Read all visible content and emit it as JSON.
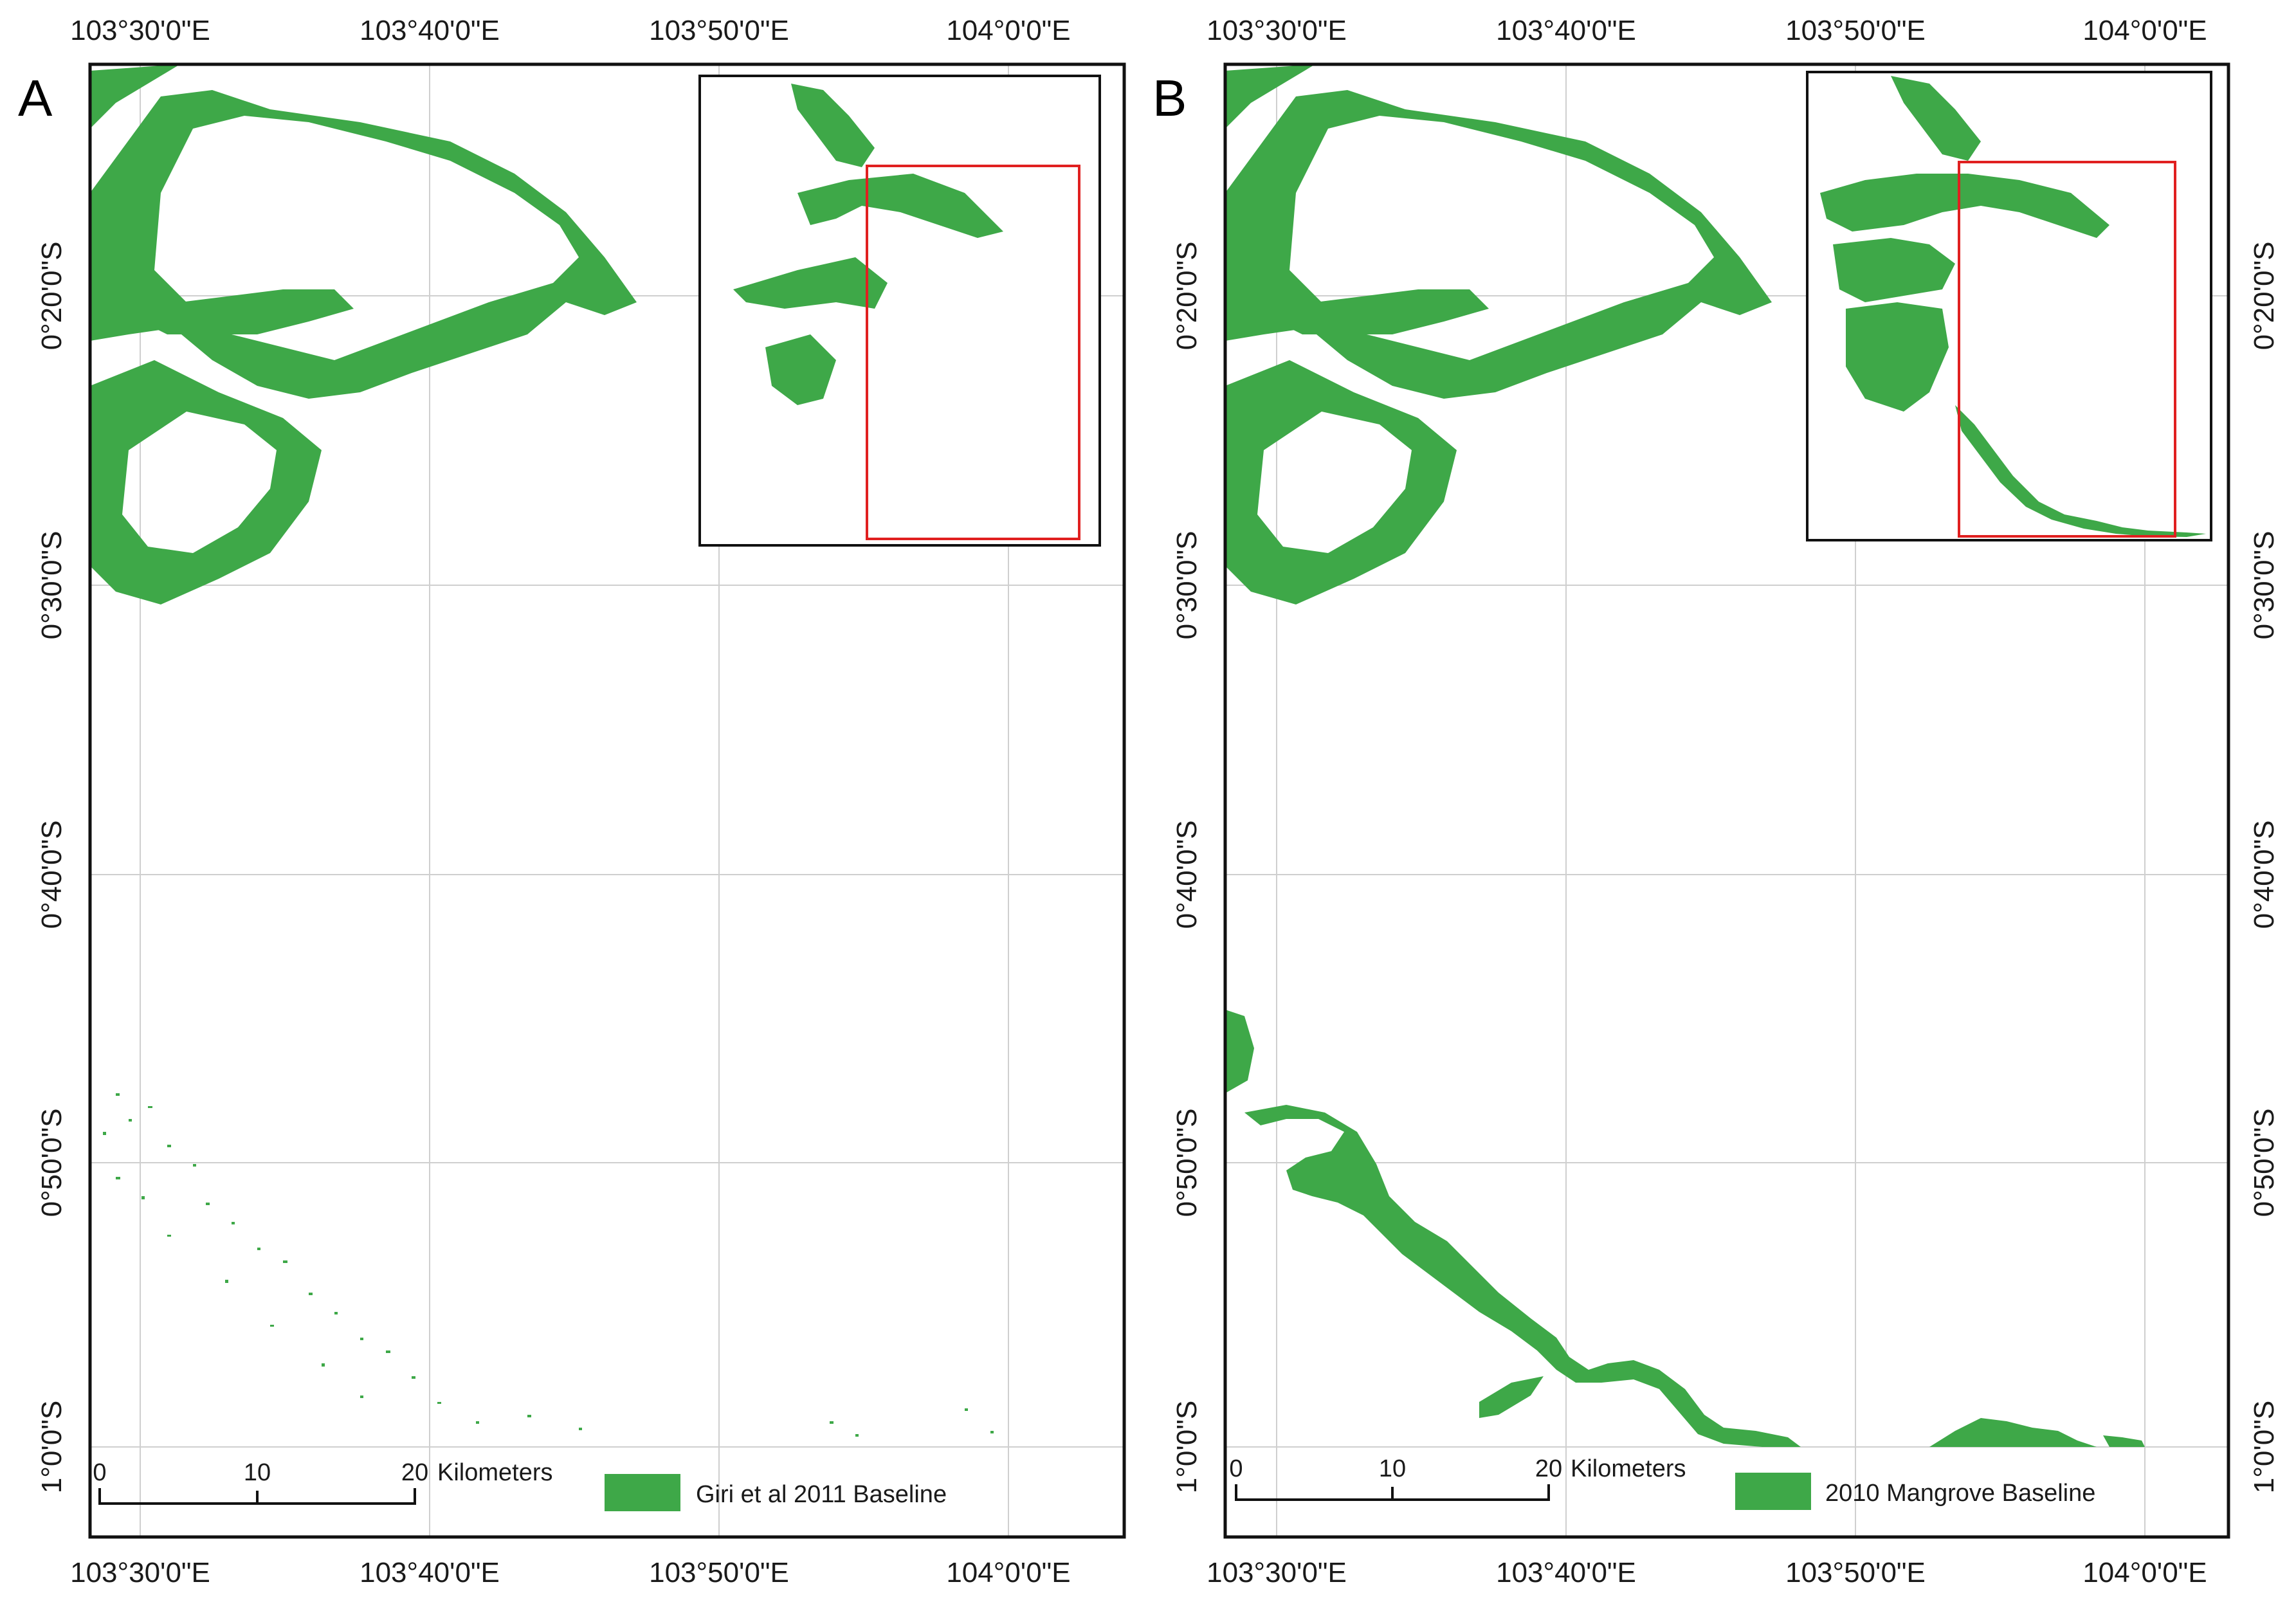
{
  "colors": {
    "mangrove": "#3ea848",
    "inset_extent": "#e02020",
    "frame": "#111111"
  },
  "panels": [
    {
      "letter": "A",
      "lon_labels": [
        "103°30'0\"E",
        "103°40'0\"E",
        "103°50'0\"E",
        "104°0'0\"E"
      ],
      "lat_labels": [
        "0°20'0\"S",
        "0°30'0\"S",
        "0°40'0\"S",
        "0°50'0\"S",
        "1°0'0\"S"
      ],
      "scale_bar": {
        "ticks": [
          "0",
          "10",
          "20"
        ],
        "unit": "Kilometers"
      },
      "legend": {
        "label": "Giri et al 2011 Baseline"
      }
    },
    {
      "letter": "B",
      "lon_labels": [
        "103°30'0\"E",
        "103°40'0\"E",
        "103°50'0\"E",
        "104°0'0\"E"
      ],
      "lat_labels": [
        "0°20'0\"S",
        "0°30'0\"S",
        "0°40'0\"S",
        "0°50'0\"S",
        "1°0'0\"S"
      ],
      "scale_bar": {
        "ticks": [
          "0",
          "10",
          "20"
        ],
        "unit": "Kilometers"
      },
      "legend": {
        "label": "2010 Mangrove Baseline"
      }
    }
  ]
}
